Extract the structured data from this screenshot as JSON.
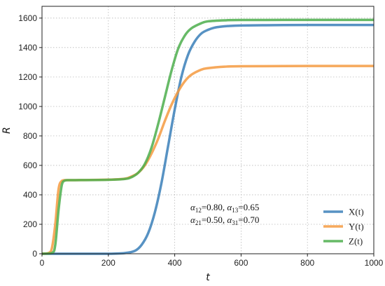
{
  "chart_data": {
    "type": "line",
    "xlabel": "t",
    "ylabel": "R",
    "xlim": [
      0,
      1000
    ],
    "ylim": [
      0,
      1680
    ],
    "x_ticks": [
      0,
      200,
      400,
      600,
      800,
      1000
    ],
    "y_ticks": [
      0,
      200,
      400,
      600,
      800,
      1000,
      1200,
      1400,
      1600
    ],
    "grid": true,
    "grid_style": "dotted",
    "legend_position": "bottom-right",
    "annotation": {
      "line1": {
        "a1": "α",
        "s1": "12",
        "v1": "=0.80, ",
        "a2": "α",
        "s2": "13",
        "v2": "=0.65"
      },
      "line2": {
        "a1": "α",
        "s1": "21",
        "v1": "=0.50, ",
        "a2": "α",
        "s2": "31",
        "v2": "=0.70"
      }
    },
    "series": [
      {
        "name": "X(t)",
        "color": "#3a7fb8",
        "x": [
          0,
          100,
          200,
          250,
          280,
          300,
          320,
          340,
          360,
          380,
          400,
          420,
          440,
          460,
          480,
          500,
          520,
          540,
          560,
          600,
          700,
          800,
          1000
        ],
        "y": [
          0,
          0,
          0,
          5,
          20,
          60,
          140,
          280,
          480,
          730,
          980,
          1200,
          1350,
          1440,
          1495,
          1520,
          1535,
          1542,
          1546,
          1550,
          1552,
          1553,
          1553
        ]
      },
      {
        "name": "Y(t)",
        "color": "#f59a3f",
        "x": [
          0,
          20,
          30,
          40,
          50,
          60,
          70,
          100,
          200,
          250,
          270,
          290,
          310,
          330,
          350,
          370,
          390,
          410,
          430,
          450,
          480,
          500,
          550,
          600,
          800,
          1000
        ],
        "y": [
          0,
          5,
          40,
          200,
          440,
          495,
          500,
          500,
          503,
          510,
          525,
          550,
          600,
          680,
          780,
          900,
          1010,
          1100,
          1170,
          1215,
          1250,
          1260,
          1270,
          1273,
          1275,
          1275
        ]
      },
      {
        "name": "Z(t)",
        "color": "#4cae4c",
        "x": [
          0,
          30,
          40,
          50,
          60,
          70,
          80,
          100,
          200,
          250,
          270,
          290,
          310,
          330,
          350,
          370,
          390,
          410,
          430,
          450,
          480,
          500,
          550,
          600,
          800,
          1000
        ],
        "y": [
          0,
          5,
          60,
          300,
          470,
          498,
          500,
          500,
          502,
          508,
          520,
          550,
          610,
          720,
          880,
          1060,
          1240,
          1390,
          1480,
          1530,
          1565,
          1578,
          1585,
          1587,
          1588,
          1588
        ]
      }
    ]
  }
}
